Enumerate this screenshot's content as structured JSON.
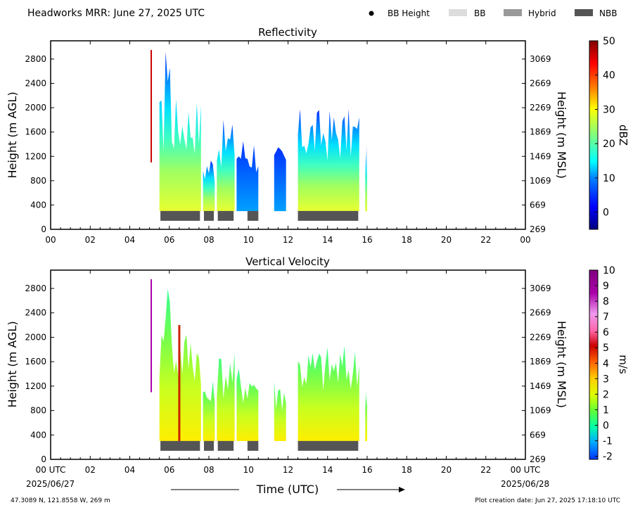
{
  "header": {
    "title": "Headworks MRR:  June 27, 2025 UTC",
    "legend": [
      {
        "label": "BB Height",
        "marker": "dot",
        "color": "#000000"
      },
      {
        "label": "BB",
        "marker": "box",
        "color": "#dcdcdc"
      },
      {
        "label": "Hybrid",
        "marker": "box",
        "color": "#999999"
      },
      {
        "label": "NBB",
        "marker": "box",
        "color": "#555555"
      }
    ]
  },
  "footer": {
    "location": "47.3089 N, 121.8558 W, 269 m",
    "created": "Plot creation date: Jun 27, 2025 17:18:10 UTC",
    "xlabel": "Time (UTC)",
    "start_date": "2025/06/27",
    "end_date": "2025/06/28"
  },
  "chart_data": [
    {
      "type": "heatmap",
      "title": "Reflectivity",
      "xlabel": "",
      "ylabel": "Height (m AGL)",
      "ylabel_right": "Height (m MSL)",
      "xlim": [
        0,
        24
      ],
      "ylim": [
        0,
        3100
      ],
      "xticks": [
        "00",
        "02",
        "04",
        "06",
        "08",
        "10",
        "12",
        "14",
        "16",
        "18",
        "20",
        "22",
        "00"
      ],
      "yticks": [
        0,
        400,
        800,
        1200,
        1600,
        2000,
        2400,
        2800
      ],
      "yticks_right": [
        "269",
        "669",
        "1069",
        "1469",
        "1869",
        "2269",
        "2669",
        "3069"
      ],
      "colorbar": {
        "label": "dBZ",
        "range": [
          -5,
          50
        ],
        "ticks": [
          0,
          10,
          20,
          30,
          40,
          50
        ],
        "colors": [
          "#00007f",
          "#0000ff",
          "#0080ff",
          "#00ffff",
          "#80ff80",
          "#ffff00",
          "#ff8000",
          "#ff0000",
          "#7f0000"
        ]
      },
      "precip_columns": [
        {
          "start": 5.5,
          "end": 7.6,
          "top": 2200,
          "peak": 3000
        },
        {
          "start": 7.7,
          "end": 8.3,
          "top": 1300
        },
        {
          "start": 8.4,
          "end": 9.3,
          "top": 1800
        },
        {
          "start": 9.4,
          "end": 10.5,
          "top": 1600
        },
        {
          "start": 11.3,
          "end": 11.9,
          "top": 1400
        },
        {
          "start": 12.5,
          "end": 15.6,
          "top": 2000
        },
        {
          "start": 15.9,
          "end": 16.0,
          "top": 1400
        }
      ],
      "bright_band": [
        {
          "start": 5.55,
          "end": 7.55,
          "kind": "NBB"
        },
        {
          "start": 7.75,
          "end": 8.25,
          "kind": "NBB"
        },
        {
          "start": 8.45,
          "end": 9.25,
          "kind": "NBB"
        },
        {
          "start": 9.95,
          "end": 10.5,
          "kind": "NBB"
        },
        {
          "start": 12.5,
          "end": 15.55,
          "kind": "NBB"
        }
      ]
    },
    {
      "type": "heatmap",
      "title": "Vertical Velocity",
      "xlabel": "Time (UTC)",
      "ylabel": "Height (m AGL)",
      "ylabel_right": "Height (m MSL)",
      "xlim": [
        0,
        24
      ],
      "ylim": [
        0,
        3100
      ],
      "xticks": [
        "00 UTC",
        "02",
        "04",
        "06",
        "08",
        "10",
        "12",
        "14",
        "16",
        "18",
        "20",
        "22",
        "00 UTC"
      ],
      "yticks": [
        0,
        400,
        800,
        1200,
        1600,
        2000,
        2400,
        2800
      ],
      "yticks_right": [
        "269",
        "669",
        "1069",
        "1469",
        "1869",
        "2269",
        "2669",
        "3069"
      ],
      "colorbar": {
        "label": "m/s",
        "range": [
          -2.2,
          10
        ],
        "ticks": [
          -2,
          -1,
          0,
          1,
          2,
          3,
          4,
          5,
          6,
          7,
          8,
          9,
          10
        ],
        "colors": [
          "#0033ff",
          "#00aaff",
          "#00ffaa",
          "#66ff33",
          "#ddff00",
          "#ffcc00",
          "#ff6600",
          "#cc0000",
          "#ff66aa",
          "#ee99ee",
          "#aa00aa",
          "#800080"
        ]
      },
      "precip_columns": [
        {
          "start": 5.5,
          "end": 7.6,
          "top": 2200,
          "peak": 3000
        },
        {
          "start": 7.7,
          "end": 8.3,
          "top": 1300
        },
        {
          "start": 8.4,
          "end": 9.3,
          "top": 1800
        },
        {
          "start": 9.4,
          "end": 10.5,
          "top": 1600
        },
        {
          "start": 11.3,
          "end": 11.9,
          "top": 1400
        },
        {
          "start": 12.5,
          "end": 15.6,
          "top": 1900
        },
        {
          "start": 15.9,
          "end": 16.0,
          "top": 1400
        }
      ],
      "bright_band": [
        {
          "start": 5.55,
          "end": 7.55,
          "kind": "NBB"
        },
        {
          "start": 7.75,
          "end": 8.25,
          "kind": "NBB"
        },
        {
          "start": 8.45,
          "end": 9.25,
          "kind": "NBB"
        },
        {
          "start": 9.95,
          "end": 10.5,
          "kind": "NBB"
        },
        {
          "start": 12.5,
          "end": 15.55,
          "kind": "NBB"
        }
      ]
    }
  ]
}
